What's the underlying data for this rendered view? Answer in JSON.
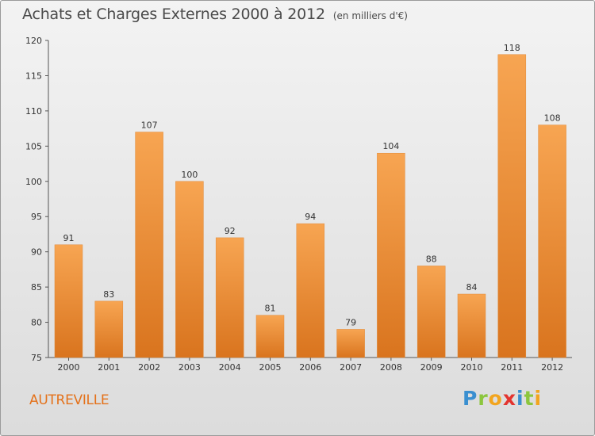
{
  "title": "Achats et Charges Externes 2000 à 2012",
  "subtitle": "(en milliers d'€)",
  "commune": "AUTREVILLE",
  "logo": {
    "text": "Proxiti",
    "letters": [
      {
        "char": "P",
        "color": "#3a8fd0"
      },
      {
        "char": "r",
        "color": "#8cc63e"
      },
      {
        "char": "o",
        "color": "#f2a51f"
      },
      {
        "char": "x",
        "color": "#e3342f"
      },
      {
        "char": "i",
        "color": "#3a8fd0"
      },
      {
        "char": "t",
        "color": "#8cc63e"
      },
      {
        "char": "i",
        "color": "#f2a51f"
      }
    ]
  },
  "colors": {
    "bar_light": "#f7a552",
    "bar_dark": "#d9741e",
    "title": "#4a4a4a",
    "commune": "#e4721b"
  },
  "chart_data": {
    "type": "bar",
    "title": "Achats et Charges Externes 2000 à 2012",
    "subtitle": "(en milliers d'€)",
    "categories": [
      "2000",
      "2001",
      "2002",
      "2003",
      "2004",
      "2005",
      "2006",
      "2007",
      "2008",
      "2009",
      "2010",
      "2011",
      "2012"
    ],
    "values": [
      91,
      83,
      107,
      100,
      92,
      81,
      94,
      79,
      104,
      88,
      84,
      118,
      108
    ],
    "ylim": [
      75,
      120
    ],
    "yticks": [
      75,
      80,
      85,
      90,
      95,
      100,
      105,
      110,
      115,
      120
    ],
    "grid": false,
    "data_labels": true
  }
}
